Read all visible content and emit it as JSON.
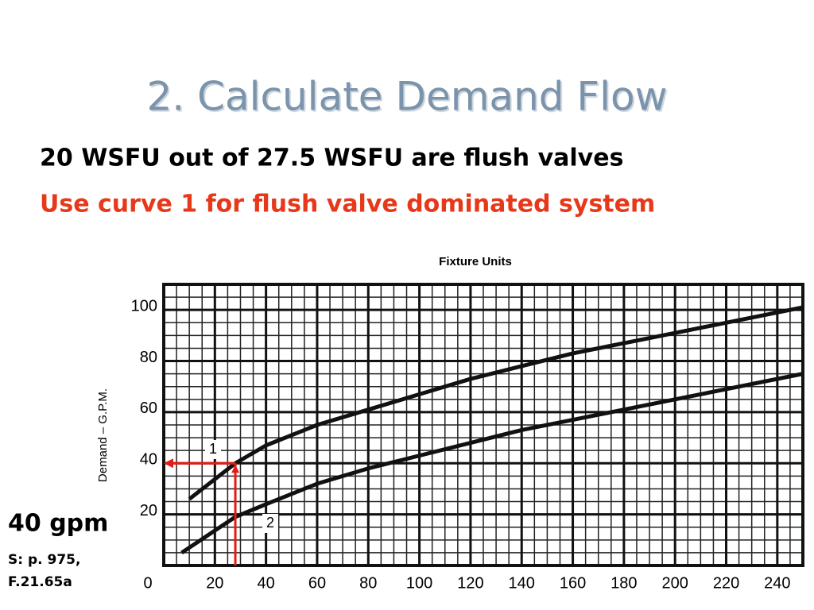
{
  "title": "2. Calculate Demand Flow",
  "lines": [
    "20 WSFU out of 27.5 WSFU are flush valves",
    "Use curve 1 for flush valve dominated system"
  ],
  "chart_data": {
    "type": "line",
    "x_label": "Fixture Units",
    "y_label": "Demand – G.P.M.",
    "x": [
      7,
      10,
      28,
      40,
      60,
      80,
      100,
      120,
      140,
      160,
      180,
      200,
      220,
      250
    ],
    "series": [
      {
        "name": "1",
        "color": "#111111",
        "values": [
          null,
          26,
          40,
          47,
          55,
          61,
          67,
          73,
          78,
          83,
          87,
          91,
          95,
          101
        ]
      },
      {
        "name": "2",
        "color": "#111111",
        "values": [
          5,
          7,
          19,
          24,
          32,
          38,
          43,
          48,
          53,
          57,
          61,
          65,
          69,
          75
        ]
      }
    ],
    "xlim": [
      0,
      250
    ],
    "ylim": [
      0,
      110
    ],
    "xticks": [
      0,
      20,
      40,
      60,
      80,
      100,
      120,
      140,
      160,
      180,
      200,
      220,
      240
    ],
    "yticks": [
      20,
      40,
      60,
      80,
      100
    ],
    "grid": true,
    "marker": {
      "x": 28,
      "y": 40,
      "color": "#e41b17"
    },
    "marker_label": "40 gpm",
    "source": [
      "S: p. 975,",
      "F.21.65a"
    ]
  }
}
